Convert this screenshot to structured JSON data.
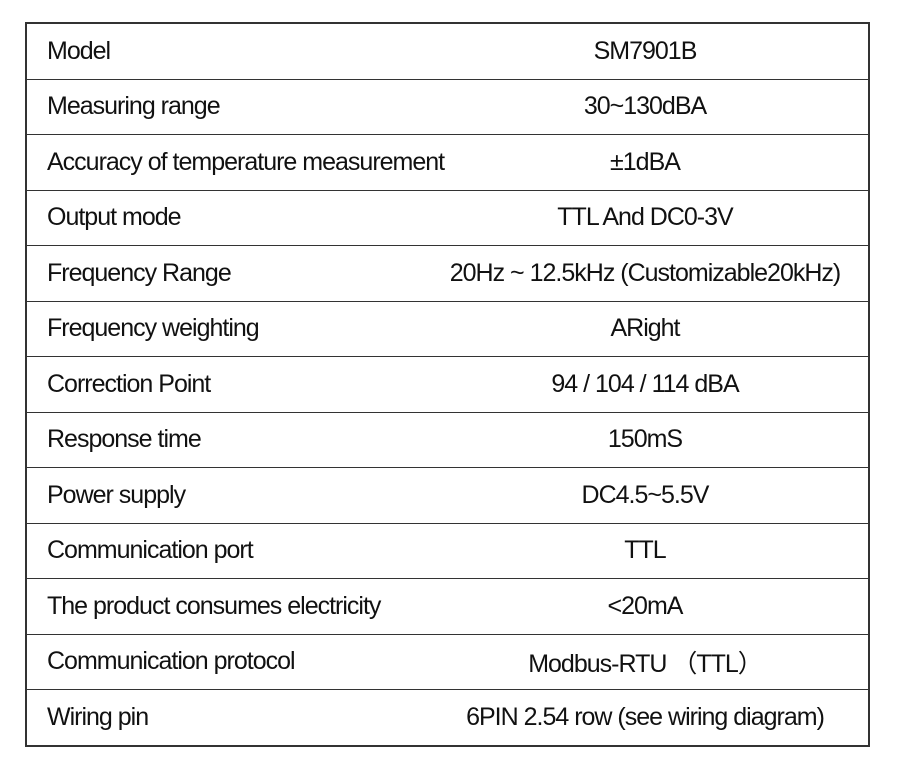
{
  "table": {
    "rows": [
      [
        "Model",
        "SM7901B"
      ],
      [
        "Measuring range",
        "30~130dBA"
      ],
      [
        "Accuracy of temperature measurement",
        "±1dBA"
      ],
      [
        "Output mode",
        "TTL And DC0-3V"
      ],
      [
        "Frequency Range",
        "20Hz ~ 12.5kHz (Customizable20kHz)"
      ],
      [
        "Frequency weighting",
        "ARight"
      ],
      [
        "Correction Point",
        "94 / 104 / 114 dBA"
      ],
      [
        "Response time",
        "150mS"
      ],
      [
        "Power supply",
        "DC4.5~5.5V"
      ],
      [
        "Communication port",
        "TTL"
      ],
      [
        "The product consumes electricity",
        "<20mA"
      ],
      [
        "Communication protocol",
        "Modbus-RTU （TTL）"
      ],
      [
        "Wiring pin",
        "6PIN 2.54 row (see wiring diagram)"
      ]
    ]
  }
}
